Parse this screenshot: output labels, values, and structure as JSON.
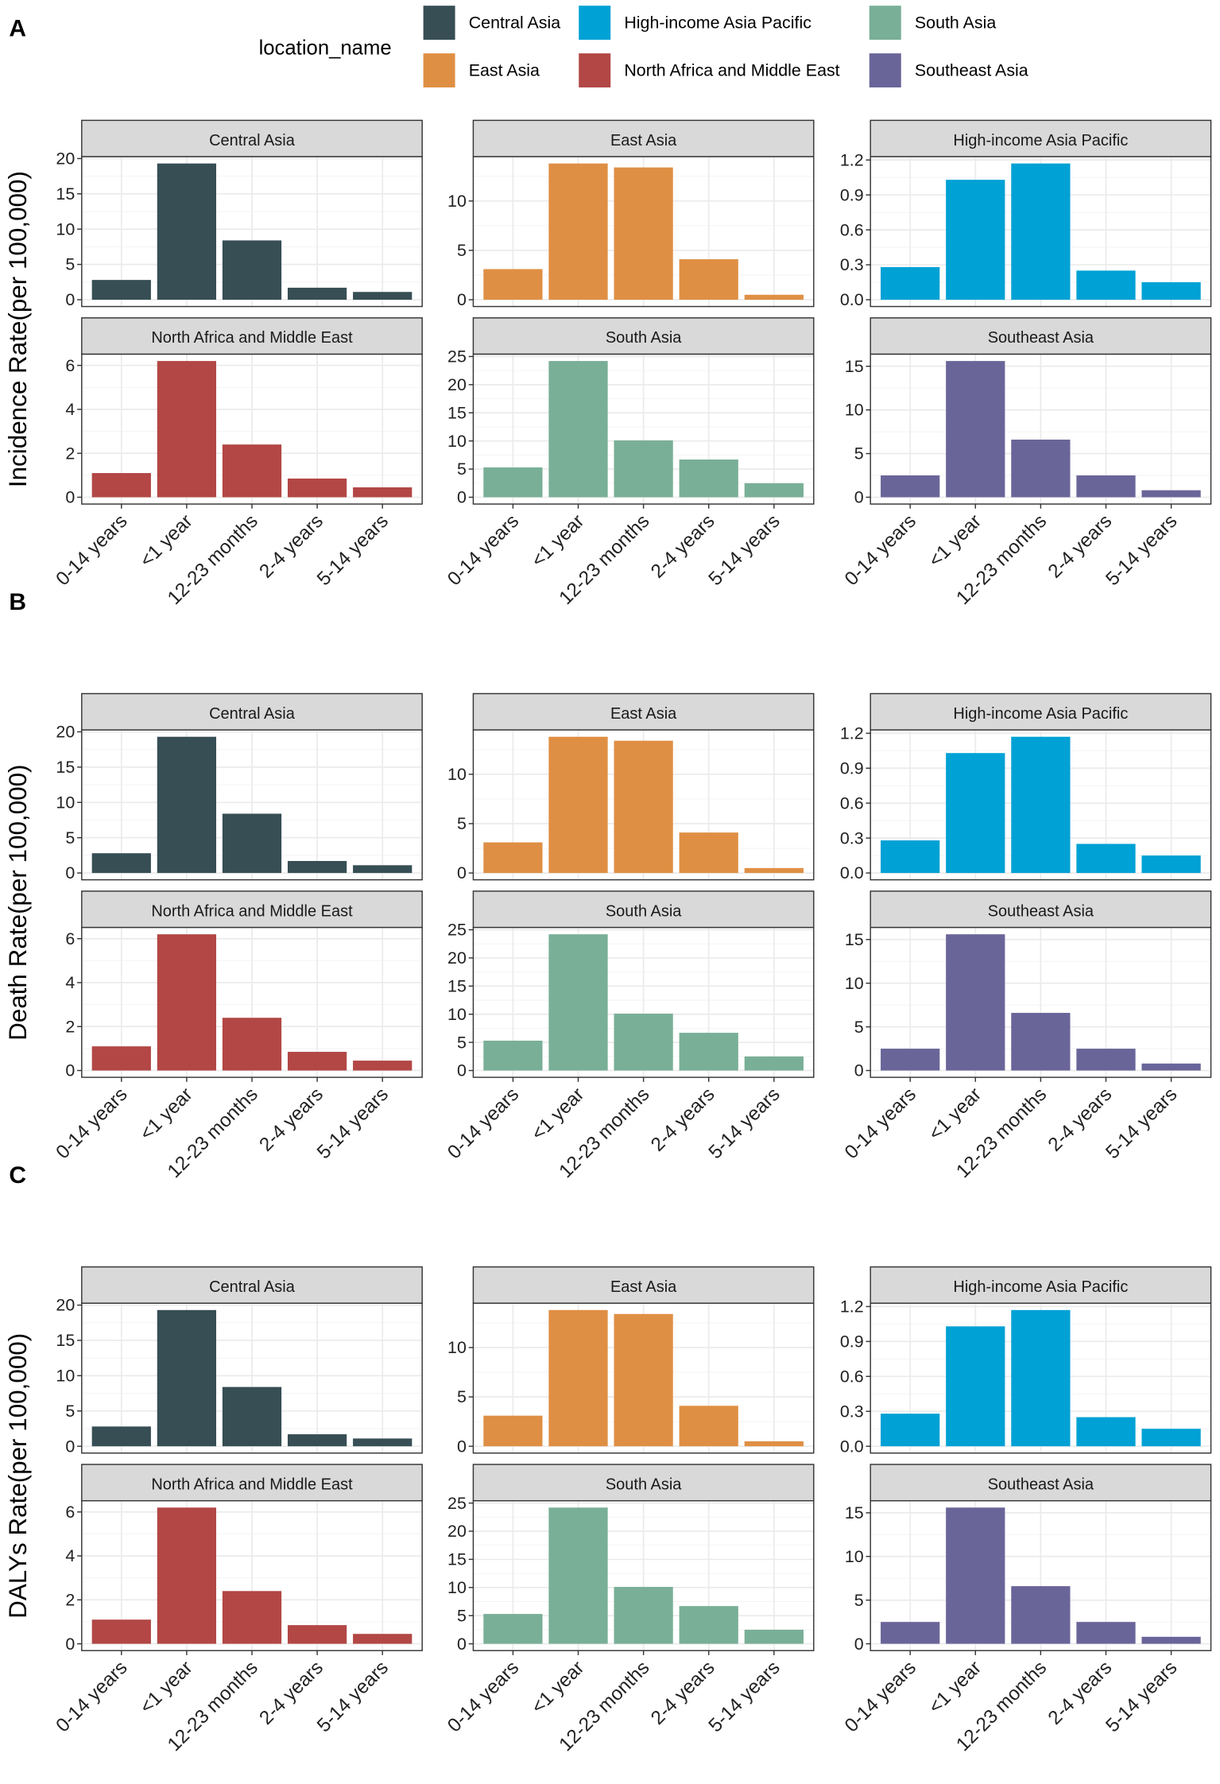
{
  "chart_data": {
    "type": "bar",
    "legend": {
      "title": "location_name",
      "placement": "top",
      "entries": [
        {
          "name": "Central Asia",
          "color": "#374e55"
        },
        {
          "name": "High-income Asia Pacific",
          "color": "#00a1d5"
        },
        {
          "name": "South Asia",
          "color": "#79af97"
        },
        {
          "name": "East Asia",
          "color": "#df8f44"
        },
        {
          "name": "North Africa and Middle East",
          "color": "#b24745"
        },
        {
          "name": "Southeast Asia",
          "color": "#6a6599"
        }
      ]
    },
    "categories": [
      "0-14 years",
      "<1 year",
      "12-23 months",
      "2-4 years",
      "5-14 years"
    ],
    "sections": [
      {
        "letter": "A",
        "ylabel": "Incidence Rate(per 100,000)"
      },
      {
        "letter": "B",
        "ylabel": "Death Rate(per 100,000)"
      },
      {
        "letter": "C",
        "ylabel": "DALYs Rate(per 100,000)"
      }
    ],
    "panels": [
      {
        "name": "Central Asia",
        "color": "#374e55",
        "yticks": [
          "0",
          "5",
          "10",
          "15",
          "20"
        ],
        "tickvals": [
          0,
          5,
          10,
          15,
          20
        ],
        "values": [
          2.8,
          19.3,
          8.4,
          1.7,
          1.1
        ]
      },
      {
        "name": "East Asia",
        "color": "#df8f44",
        "yticks": [
          "0",
          "5",
          "10"
        ],
        "tickvals": [
          0,
          5,
          10
        ],
        "values": [
          3.1,
          13.8,
          13.4,
          4.1,
          0.5
        ]
      },
      {
        "name": "High-income Asia Pacific",
        "color": "#00a1d5",
        "yticks": [
          "0.0",
          "0.3",
          "0.6",
          "0.9",
          "1.2"
        ],
        "tickvals": [
          0,
          0.3,
          0.6,
          0.9,
          1.2
        ],
        "values": [
          0.28,
          1.03,
          1.17,
          0.25,
          0.15
        ]
      },
      {
        "name": "North Africa and Middle East",
        "color": "#b24745",
        "yticks": [
          "0",
          "2",
          "4",
          "6"
        ],
        "tickvals": [
          0,
          2,
          4,
          6
        ],
        "values": [
          1.1,
          6.2,
          2.4,
          0.85,
          0.45
        ]
      },
      {
        "name": "South Asia",
        "color": "#79af97",
        "yticks": [
          "0",
          "5",
          "10",
          "15",
          "20",
          "25"
        ],
        "tickvals": [
          0,
          5,
          10,
          15,
          20,
          25
        ],
        "values": [
          5.3,
          24.2,
          10.1,
          6.7,
          2.5
        ]
      },
      {
        "name": "Southeast Asia",
        "color": "#6a6599",
        "yticks": [
          "0",
          "5",
          "10",
          "15"
        ],
        "tickvals": [
          0,
          5,
          10,
          15
        ],
        "values": [
          2.5,
          15.6,
          6.6,
          2.5,
          0.8
        ]
      }
    ]
  }
}
